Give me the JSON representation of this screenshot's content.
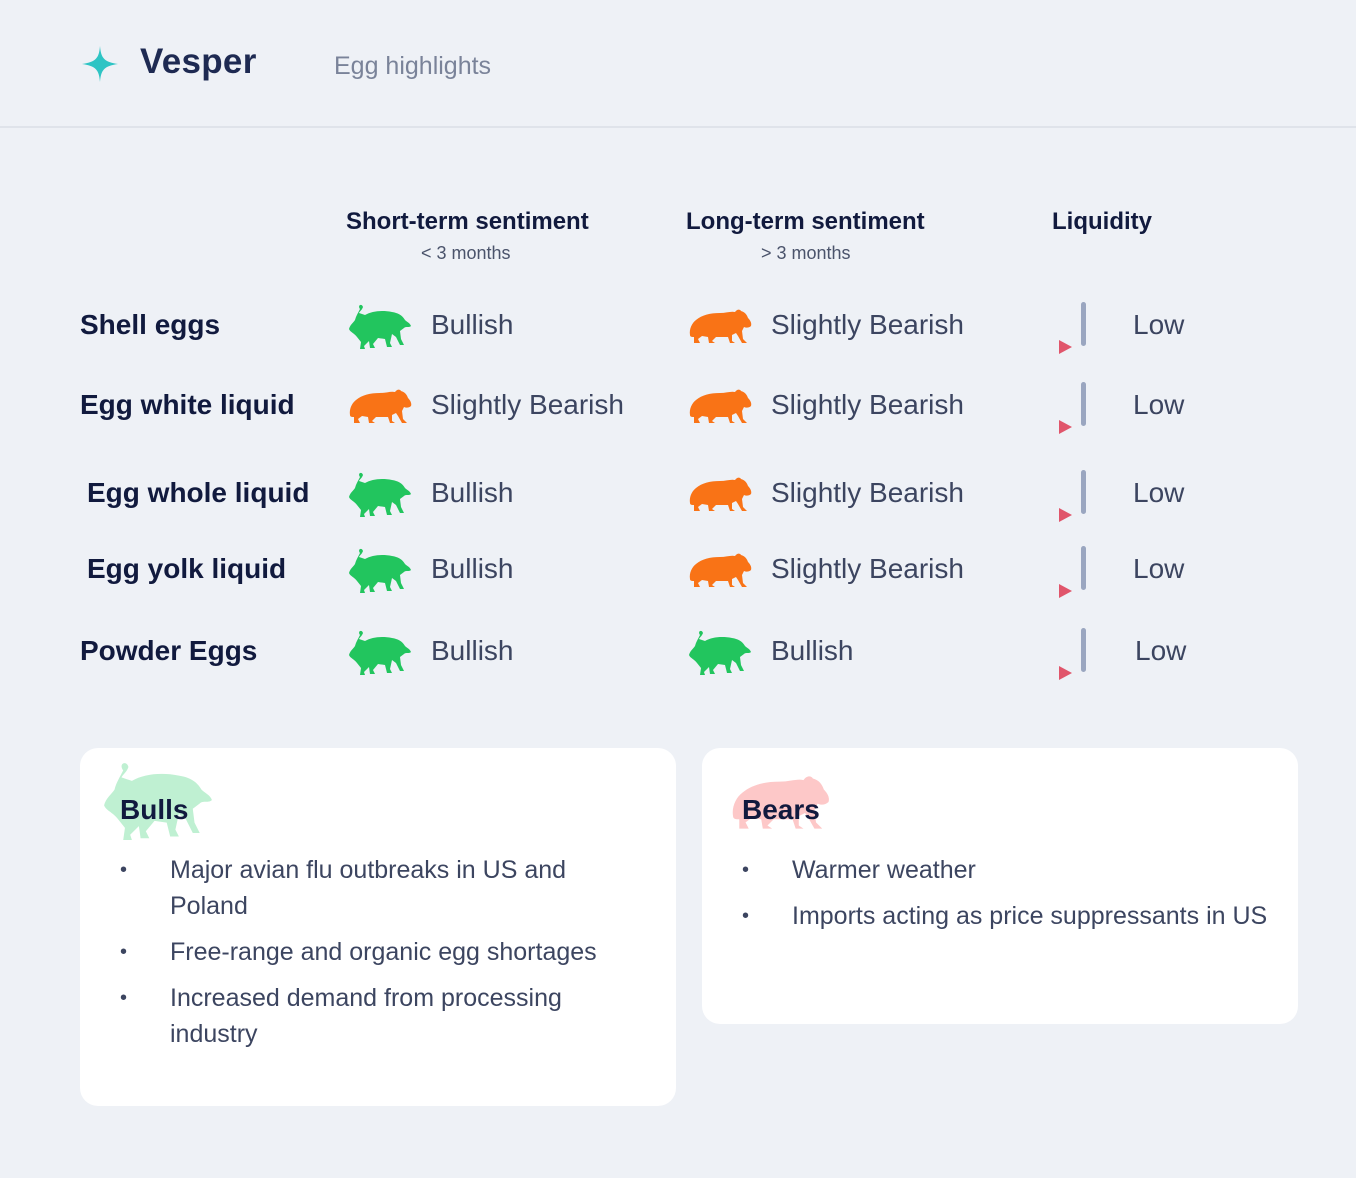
{
  "header": {
    "brand": "Vesper",
    "subtitle": "Egg highlights"
  },
  "columns": {
    "short_term": {
      "title": "Short-term sentiment",
      "sub": "< 3 months"
    },
    "long_term": {
      "title": "Long-term sentiment",
      "sub": "> 3 months"
    },
    "liquidity": {
      "title": "Liquidity"
    }
  },
  "rows": [
    {
      "label": "Shell eggs",
      "short": "Bullish",
      "short_icon": "bull-icon",
      "long": "Slightly Bearish",
      "long_icon": "bear-icon",
      "liquidity": "Low"
    },
    {
      "label": "Egg white liquid",
      "short": "Slightly Bearish",
      "short_icon": "bear-icon",
      "long": "Slightly Bearish",
      "long_icon": "bear-icon",
      "liquidity": "Low"
    },
    {
      "label": "Egg whole liquid",
      "short": "Bullish",
      "short_icon": "bull-icon",
      "long": "Slightly Bearish",
      "long_icon": "bear-icon",
      "liquidity": "Low"
    },
    {
      "label": "Egg yolk liquid",
      "short": "Bullish",
      "short_icon": "bull-icon",
      "long": "Slightly Bearish",
      "long_icon": "bear-icon",
      "liquidity": "Low"
    },
    {
      "label": "Powder Eggs",
      "short": "Bullish",
      "short_icon": "bull-icon",
      "long": "Bullish",
      "long_icon": "bull-icon",
      "liquidity": "Low"
    }
  ],
  "colors": {
    "bull": "#22c55e",
    "bear": "#f97316",
    "liquidity_bar": "#9aa6c0",
    "liquidity_arrow": "#e0556b",
    "brand_star": "#2ec4c4"
  },
  "bulls": {
    "title": "Bulls",
    "items": [
      "Major avian flu outbreaks in US and Poland",
      "Free-range and organic egg shortages",
      "Increased demand from processing industry"
    ]
  },
  "bears": {
    "title": "Bears",
    "items": [
      "Warmer weather",
      "Imports acting as price suppressants in US"
    ]
  }
}
